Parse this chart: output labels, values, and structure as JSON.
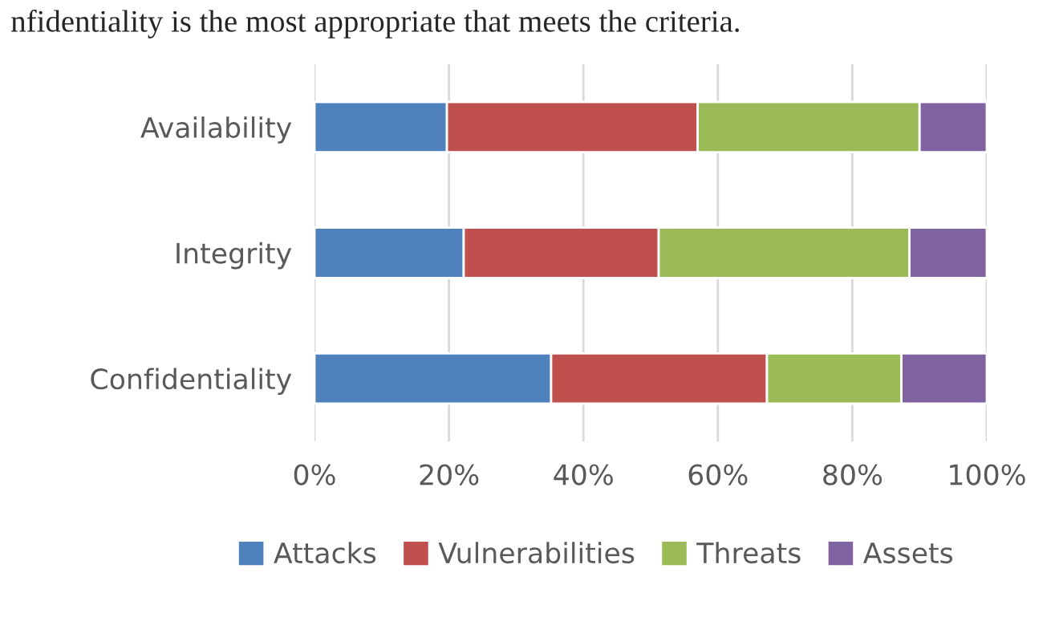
{
  "chart_data": {
    "type": "bar",
    "orientation": "horizontal",
    "stacked": true,
    "annotations": [
      "nfidentiality is the most appropriate that meets the criteria."
    ],
    "categories": [
      "Availability",
      "Integrity",
      "Confidentiality"
    ],
    "series": [
      {
        "name": "Attacks",
        "color": "#4f81bd",
        "values": [
          19.7,
          22.2,
          35.2
        ]
      },
      {
        "name": "Vulnerabilities",
        "color": "#c0504d",
        "values": [
          37.3,
          29.0,
          32.1
        ]
      },
      {
        "name": "Threats",
        "color": "#9bbb59",
        "values": [
          33.0,
          37.3,
          20.0
        ]
      },
      {
        "name": "Assets",
        "color": "#8064a2",
        "values": [
          10.0,
          11.5,
          12.7
        ]
      }
    ],
    "xlim": [
      0,
      100
    ],
    "xticks": [
      {
        "value": 0,
        "label": "0%"
      },
      {
        "value": 20,
        "label": "20%"
      },
      {
        "value": 40,
        "label": "40%"
      },
      {
        "value": 60,
        "label": "60%"
      },
      {
        "value": 80,
        "label": "80%"
      },
      {
        "value": 100,
        "label": "100%"
      }
    ],
    "grid": "x",
    "legend": "bottom"
  }
}
